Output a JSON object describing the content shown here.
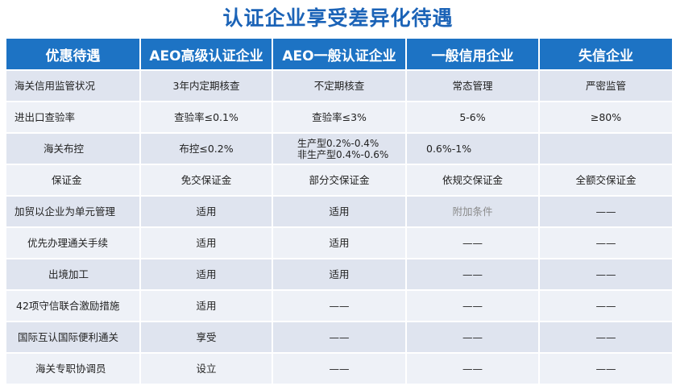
{
  "title": "认证企业享受差异化待遇",
  "headers": [
    "优惠待遇",
    "AEO高级认证企业",
    "AEO一般认证企业",
    "一般信用企业",
    "失信企业"
  ],
  "rows": [
    {
      "label": "海关信用监管状况",
      "senior": "3年内定期核查",
      "general": "不定期核查",
      "general_line2": "",
      "ordinary": "常态管理",
      "dishonest": "严密监管"
    },
    {
      "label": "进出口查验率",
      "senior": "查验率≤0.1%",
      "general": "查验率≤3%",
      "general_line2": "",
      "ordinary": "5-6%",
      "dishonest": "≥80%"
    },
    {
      "label": "海关布控",
      "senior": "布控≤0.2%",
      "general": "生产型0.2%-0.4%",
      "general_line2": "非生产型0.4%-0.6%",
      "ordinary": "0.6%-1%",
      "dishonest": ""
    },
    {
      "label": "保证金",
      "senior": "免交保证金",
      "general": "部分交保证金",
      "general_line2": "",
      "ordinary": "依规交保证金",
      "dishonest": "全额交保证金"
    },
    {
      "label": "加贸以企业为单元管理",
      "senior": "适用",
      "general": "适用",
      "general_line2": "",
      "ordinary": "附加条件",
      "dishonest": "——"
    },
    {
      "label": "优先办理通关手续",
      "senior": "适用",
      "general": "适用",
      "general_line2": "",
      "ordinary": "——",
      "dishonest": "——"
    },
    {
      "label": "出境加工",
      "senior": "适用",
      "general": "适用",
      "general_line2": "",
      "ordinary": "——",
      "dishonest": "——"
    },
    {
      "label": "42项守信联合激励措施",
      "senior": "适用",
      "general": "——",
      "general_line2": "",
      "ordinary": "——",
      "dishonest": "——"
    },
    {
      "label": "国际互认国际便利通关",
      "senior": "享受",
      "general": "——",
      "general_line2": "",
      "ordinary": "——",
      "dishonest": "——"
    },
    {
      "label": "海关专职协调员",
      "senior": "设立",
      "general": "——",
      "general_line2": "",
      "ordinary": "——",
      "dishonest": "——"
    }
  ]
}
